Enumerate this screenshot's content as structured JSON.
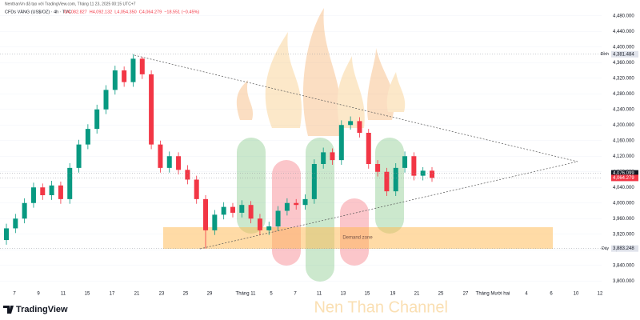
{
  "header": "NenthanVn đã tạo với TradingView.com, Tháng 11 23, 2025 00:15 UTC+7",
  "symbol": "CFDs VÀNG (US$/OZ) · 4h · TVC",
  "ohlc_legend": [
    "O4,082.827",
    "H4,092.132",
    "L4,054.350",
    "C4,064.279",
    "−18.551 (−0.45%)"
  ],
  "zone_label": "Demand zone",
  "watermark": "Nen Than Channel",
  "brand": "TradingView",
  "chart_data": {
    "type": "candlestick",
    "up_color": "#089981",
    "down_color": "#f23645",
    "open": [
      3905,
      3935,
      3960,
      4000,
      4040,
      4020,
      4045,
      4010,
      4090,
      4150,
      4190,
      4240,
      4290,
      4340,
      4310,
      4370,
      4330,
      4150,
      4090,
      4120,
      4085,
      4060,
      4010,
      3930,
      3970,
      3990,
      3975,
      3995,
      3960,
      3930,
      3940,
      3980,
      4000,
      3995,
      4010,
      4100,
      4130,
      4110,
      4200,
      4210,
      4180,
      4100,
      4080,
      4030,
      4090,
      4120,
      4070,
      4082.827
    ],
    "high": [
      3947,
      3972,
      4012,
      4052,
      4050,
      4057,
      4055,
      4102,
      4162,
      4202,
      4252,
      4302,
      4352,
      4350,
      4381.484,
      4375,
      4340,
      4160,
      4132,
      4130,
      4097,
      4070,
      4020,
      3982,
      4002,
      4000,
      4007,
      4005,
      3972,
      3952,
      3992,
      4012,
      4010,
      4022,
      4112,
      4142,
      4140,
      4212,
      4222,
      4220,
      4190,
      4110,
      4090,
      4102,
      4132,
      4130,
      4092,
      4092.132
    ],
    "low": [
      3893,
      3923,
      3948,
      3988,
      4008,
      4008,
      3998,
      3998,
      4078,
      4138,
      4178,
      4228,
      4278,
      4298,
      4298,
      4318,
      4138,
      4078,
      4078,
      4073,
      4048,
      3998,
      3883.248,
      3918,
      3958,
      3963,
      3963,
      3948,
      3918,
      3918,
      3928,
      3968,
      3983,
      3983,
      3998,
      4088,
      4098,
      4098,
      4188,
      4168,
      4088,
      4068,
      4018,
      4018,
      4078,
      4058,
      4058,
      4054.35
    ],
    "close": [
      3935,
      3960,
      4000,
      4040,
      4020,
      4045,
      4010,
      4090,
      4150,
      4190,
      4240,
      4290,
      4340,
      4310,
      4370,
      4330,
      4150,
      4090,
      4120,
      4085,
      4060,
      4010,
      3930,
      3970,
      3990,
      3975,
      3995,
      3960,
      3930,
      3940,
      3980,
      4000,
      3995,
      4010,
      4100,
      4130,
      4110,
      4200,
      4210,
      4180,
      4100,
      4080,
      4030,
      4090,
      4120,
      4070,
      4082.827,
      4064.279
    ],
    "ylim": [
      3780,
      4500
    ],
    "yticks": [
      {
        "value": 4480,
        "label": "4,480.000"
      },
      {
        "value": 4440,
        "label": "4,440.000"
      },
      {
        "value": 4400,
        "label": "4,400.000"
      },
      {
        "value": 4360,
        "label": "4,360.000"
      },
      {
        "value": 4320,
        "label": "4,320.000"
      },
      {
        "value": 4280,
        "label": "4,280.000"
      },
      {
        "value": 4240,
        "label": "4,240.000"
      },
      {
        "value": 4200,
        "label": "4,200.000"
      },
      {
        "value": 4160,
        "label": "4,160.000"
      },
      {
        "value": 4120,
        "label": "4,120.000"
      },
      {
        "value": 4080,
        "label": "4,080.000"
      },
      {
        "value": 4040,
        "label": "4,040.000"
      },
      {
        "value": 4000,
        "label": "4,000.000"
      },
      {
        "value": 3960,
        "label": "3,960.000"
      },
      {
        "value": 3920,
        "label": "3,920.000"
      },
      {
        "value": 3880,
        "label": "3,880.000"
      },
      {
        "value": 3840,
        "label": "3,840.000"
      },
      {
        "value": 3800,
        "label": "3,800.000"
      }
    ],
    "price_labels": [
      {
        "name": "Đỉnh",
        "value": 4381.484,
        "label": "4,381.484",
        "color": "#e0e3eb"
      },
      {
        "value": 4076.099,
        "label": "4,076.099",
        "color": "#131722"
      },
      {
        "value": 4064.279,
        "label": "4,064.279",
        "color": "#f23645"
      },
      {
        "name": "Đáy",
        "value": 3883.248,
        "label": "3,883.248",
        "color": "#e0e3eb"
      }
    ],
    "x_labels": [
      "7",
      "9",
      "11",
      "15",
      "17",
      "21",
      "23",
      "25",
      "29",
      "Tháng 11",
      "5",
      "7",
      "11",
      "13",
      "15",
      "19",
      "21",
      "25",
      "27",
      "Tháng Mười hai",
      "4",
      "6",
      "10",
      "12"
    ],
    "grid": true
  }
}
